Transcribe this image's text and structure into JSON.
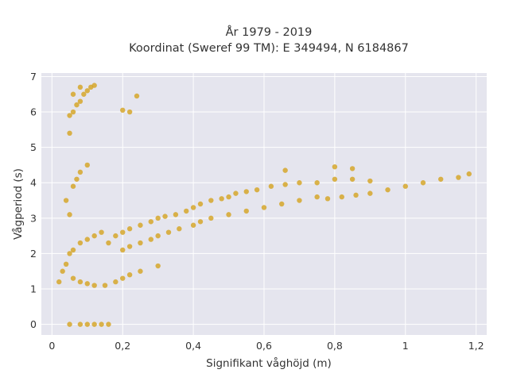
{
  "chart_data": {
    "type": "scatter",
    "title": "År 1979 - 2019",
    "subtitle": "Koordinat (Sweref 99 TM): E 349494, N 6184867",
    "xlabel": "Signifikant våghöjd (m)",
    "ylabel": "Vågperiod (s)",
    "xlim": [
      -0.03,
      1.23
    ],
    "ylim": [
      -0.3,
      7.1
    ],
    "x_ticks": [
      0,
      0.2,
      0.4,
      0.6,
      0.8,
      1,
      1.2
    ],
    "x_tick_labels": [
      "0",
      "0,2",
      "0,4",
      "0,6",
      "0,8",
      "1",
      "1,2"
    ],
    "y_ticks": [
      0,
      1,
      2,
      3,
      4,
      5,
      6,
      7
    ],
    "y_tick_labels": [
      "0",
      "1",
      "2",
      "3",
      "4",
      "5",
      "6",
      "7"
    ],
    "grid": true,
    "marker_color": "#D4A21E",
    "background_color": "#E5E5EE",
    "series": [
      {
        "points": [
          [
            0.05,
            0.0
          ],
          [
            0.08,
            0.0
          ],
          [
            0.1,
            0.0
          ],
          [
            0.12,
            0.0
          ],
          [
            0.14,
            0.0
          ],
          [
            0.16,
            0.0
          ],
          [
            0.02,
            1.2
          ],
          [
            0.03,
            1.5
          ],
          [
            0.04,
            1.7
          ],
          [
            0.05,
            2.0
          ],
          [
            0.06,
            2.1
          ],
          [
            0.08,
            2.3
          ],
          [
            0.1,
            2.4
          ],
          [
            0.12,
            2.5
          ],
          [
            0.14,
            2.6
          ],
          [
            0.06,
            1.3
          ],
          [
            0.08,
            1.2
          ],
          [
            0.1,
            1.15
          ],
          [
            0.12,
            1.1
          ],
          [
            0.15,
            1.1
          ],
          [
            0.18,
            1.2
          ],
          [
            0.2,
            1.3
          ],
          [
            0.22,
            1.4
          ],
          [
            0.25,
            1.5
          ],
          [
            0.3,
            1.65
          ],
          [
            0.16,
            2.3
          ],
          [
            0.18,
            2.5
          ],
          [
            0.2,
            2.6
          ],
          [
            0.22,
            2.7
          ],
          [
            0.25,
            2.8
          ],
          [
            0.28,
            2.9
          ],
          [
            0.3,
            3.0
          ],
          [
            0.32,
            3.05
          ],
          [
            0.35,
            3.1
          ],
          [
            0.2,
            2.1
          ],
          [
            0.22,
            2.2
          ],
          [
            0.25,
            2.3
          ],
          [
            0.28,
            2.4
          ],
          [
            0.3,
            2.5
          ],
          [
            0.33,
            2.6
          ],
          [
            0.36,
            2.7
          ],
          [
            0.4,
            2.8
          ],
          [
            0.38,
            3.2
          ],
          [
            0.4,
            3.3
          ],
          [
            0.42,
            3.4
          ],
          [
            0.45,
            3.5
          ],
          [
            0.48,
            3.55
          ],
          [
            0.5,
            3.6
          ],
          [
            0.52,
            3.7
          ],
          [
            0.55,
            3.75
          ],
          [
            0.42,
            2.9
          ],
          [
            0.45,
            3.0
          ],
          [
            0.5,
            3.1
          ],
          [
            0.55,
            3.2
          ],
          [
            0.6,
            3.3
          ],
          [
            0.65,
            3.4
          ],
          [
            0.7,
            3.5
          ],
          [
            0.75,
            3.6
          ],
          [
            0.58,
            3.8
          ],
          [
            0.62,
            3.9
          ],
          [
            0.66,
            3.95
          ],
          [
            0.7,
            4.0
          ],
          [
            0.75,
            4.0
          ],
          [
            0.8,
            4.1
          ],
          [
            0.85,
            4.1
          ],
          [
            0.9,
            4.05
          ],
          [
            0.78,
            3.55
          ],
          [
            0.82,
            3.6
          ],
          [
            0.86,
            3.65
          ],
          [
            0.9,
            3.7
          ],
          [
            0.95,
            3.8
          ],
          [
            1.0,
            3.9
          ],
          [
            1.05,
            4.0
          ],
          [
            1.1,
            4.1
          ],
          [
            1.15,
            4.15
          ],
          [
            1.18,
            4.25
          ],
          [
            0.06,
            3.9
          ],
          [
            0.07,
            4.1
          ],
          [
            0.08,
            4.3
          ],
          [
            0.1,
            4.5
          ],
          [
            0.05,
            3.1
          ],
          [
            0.04,
            3.5
          ],
          [
            0.05,
            5.4
          ],
          [
            0.05,
            5.9
          ],
          [
            0.06,
            6.0
          ],
          [
            0.07,
            6.2
          ],
          [
            0.08,
            6.3
          ],
          [
            0.09,
            6.5
          ],
          [
            0.1,
            6.6
          ],
          [
            0.11,
            6.7
          ],
          [
            0.12,
            6.75
          ],
          [
            0.06,
            6.5
          ],
          [
            0.08,
            6.7
          ],
          [
            0.2,
            6.05
          ],
          [
            0.22,
            6.0
          ],
          [
            0.24,
            6.45
          ],
          [
            0.8,
            4.45
          ],
          [
            0.66,
            4.35
          ],
          [
            0.85,
            4.4
          ]
        ]
      }
    ]
  }
}
